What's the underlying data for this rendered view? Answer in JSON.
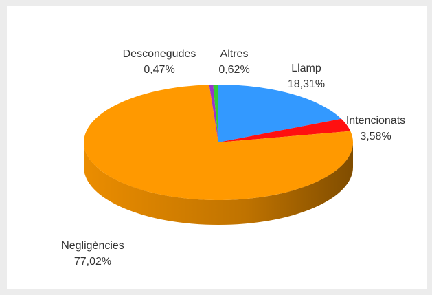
{
  "chart_data": {
    "type": "pie3d",
    "categories": [
      "Llamp",
      "Intencionats",
      "Negligències",
      "Desconegudes",
      "Altres"
    ],
    "values": [
      18.31,
      3.58,
      77.02,
      0.47,
      0.62
    ],
    "value_labels": [
      "18,31%",
      "3,58%",
      "77,02%",
      "0,47%",
      "0,62%"
    ],
    "colors": [
      "#3399ff",
      "#ff1010",
      "#ff9900",
      "#9933cc",
      "#33cc33"
    ]
  }
}
